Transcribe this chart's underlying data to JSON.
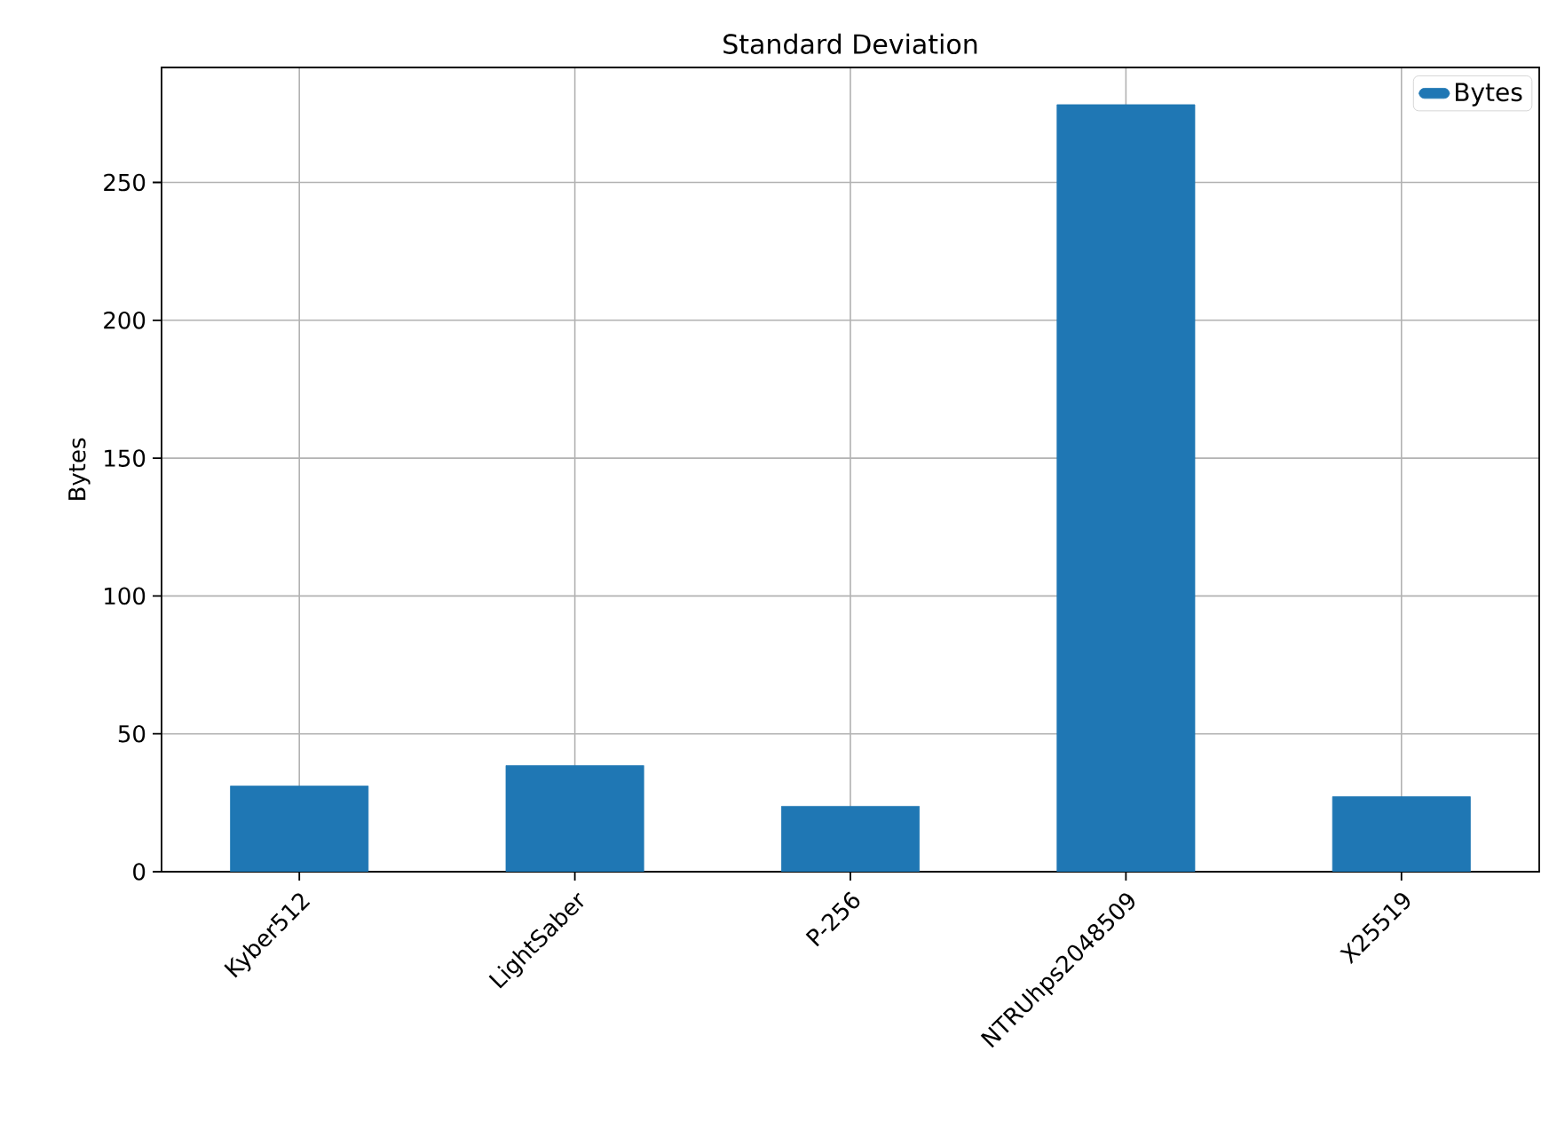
{
  "chart_data": {
    "type": "bar",
    "title": "Standard Deviation",
    "ylabel": "Bytes",
    "categories": [
      "Kyber512",
      "LightSaber",
      "P-256",
      "NTRUhps2048509",
      "X25519"
    ],
    "series": [
      {
        "name": "Bytes",
        "color": "#1f77b4",
        "values": [
          31.1,
          38.5,
          23.7,
          278.2,
          27.2
        ]
      }
    ],
    "ylim": [
      0,
      291.7
    ],
    "yticks": [
      0,
      50,
      100,
      150,
      200,
      250
    ],
    "grid": true,
    "legend": "top right"
  }
}
